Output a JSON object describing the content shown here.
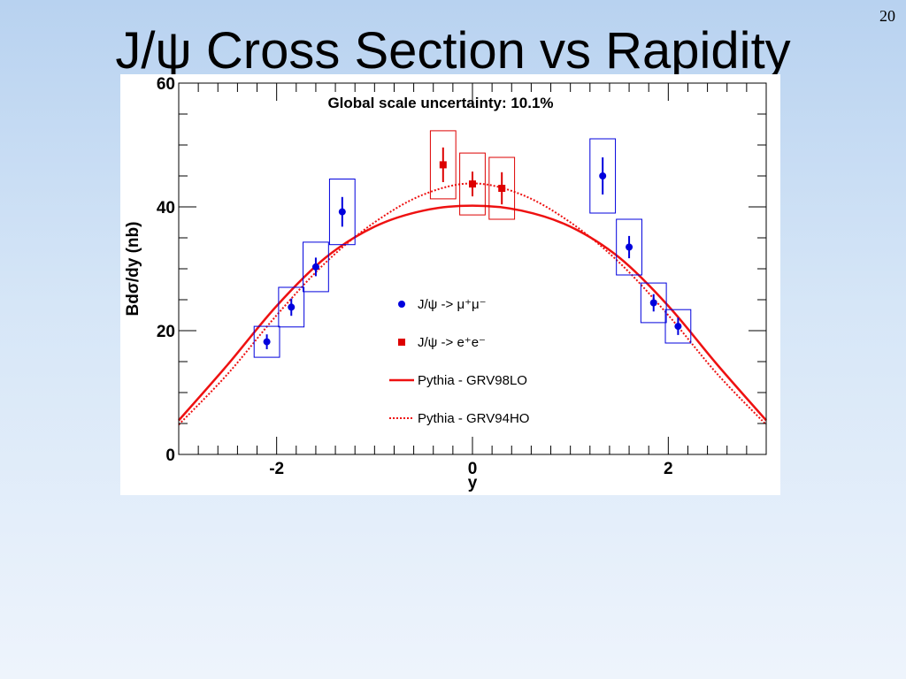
{
  "slide": {
    "number": "20",
    "title": "J/ψ Cross Section vs Rapidity"
  },
  "chart_data": {
    "type": "scatter",
    "annotation": "Global scale uncertainty: 10.1%",
    "xlabel": "y",
    "ylabel": "Bdσ/dy (nb)",
    "xlim": [
      -3,
      3
    ],
    "ylim": [
      0,
      60
    ],
    "x_ticks": [
      -2,
      0,
      2
    ],
    "y_ticks": [
      0,
      20,
      40,
      60
    ],
    "legend_position": "center",
    "colors": {
      "muon": "#0000dd",
      "electron": "#dd0000",
      "curve": "#ee1111"
    },
    "series": [
      {
        "name": "J/ψ -> μ⁺μ⁻",
        "marker": "circle",
        "color": "#0000dd",
        "points": [
          {
            "x": -2.1,
            "y": 18.2,
            "stat": 1.2,
            "sys_x": 0.13,
            "sys_y": 2.5
          },
          {
            "x": -1.85,
            "y": 23.8,
            "stat": 1.4,
            "sys_x": 0.13,
            "sys_y": 3.2
          },
          {
            "x": -1.6,
            "y": 30.3,
            "stat": 1.5,
            "sys_x": 0.13,
            "sys_y": 4.0
          },
          {
            "x": -1.33,
            "y": 39.2,
            "stat": 2.4,
            "sys_x": 0.13,
            "sys_y": 5.3
          },
          {
            "x": 1.33,
            "y": 45.0,
            "stat": 3.0,
            "sys_x": 0.13,
            "sys_y": 6.0
          },
          {
            "x": 1.6,
            "y": 33.5,
            "stat": 1.8,
            "sys_x": 0.13,
            "sys_y": 4.5
          },
          {
            "x": 1.85,
            "y": 24.5,
            "stat": 1.4,
            "sys_x": 0.13,
            "sys_y": 3.2
          },
          {
            "x": 2.1,
            "y": 20.7,
            "stat": 1.4,
            "sys_x": 0.13,
            "sys_y": 2.7
          }
        ]
      },
      {
        "name": "J/ψ -> e⁺e⁻",
        "marker": "square",
        "color": "#dd0000",
        "points": [
          {
            "x": -0.3,
            "y": 46.8,
            "stat": 2.8,
            "sys_x": 0.13,
            "sys_y": 5.5
          },
          {
            "x": 0.0,
            "y": 43.7,
            "stat": 2.0,
            "sys_x": 0.13,
            "sys_y": 5.0
          },
          {
            "x": 0.3,
            "y": 43.0,
            "stat": 2.6,
            "sys_x": 0.13,
            "sys_y": 5.0
          }
        ]
      },
      {
        "name": "Pythia - GRV98LO",
        "line": "solid",
        "color": "#ee1111",
        "x": [
          -3,
          -2.5,
          -2,
          -1.5,
          -1,
          -0.5,
          0,
          0.5,
          1,
          1.5,
          2,
          2.5,
          3
        ],
        "y": [
          5.5,
          14.5,
          24.0,
          31.8,
          36.8,
          39.4,
          40.2,
          39.4,
          36.8,
          31.8,
          24.0,
          14.5,
          5.5
        ]
      },
      {
        "name": "Pythia - GRV94HO",
        "line": "dotted",
        "color": "#ee1111",
        "x": [
          -3,
          -2.5,
          -2,
          -1.5,
          -1,
          -0.5,
          0,
          0.5,
          1,
          1.5,
          2,
          2.5,
          3
        ],
        "y": [
          4.8,
          13.0,
          22.5,
          31.0,
          37.5,
          42.0,
          43.8,
          42.0,
          37.5,
          31.0,
          22.5,
          13.0,
          4.8
        ]
      }
    ]
  }
}
